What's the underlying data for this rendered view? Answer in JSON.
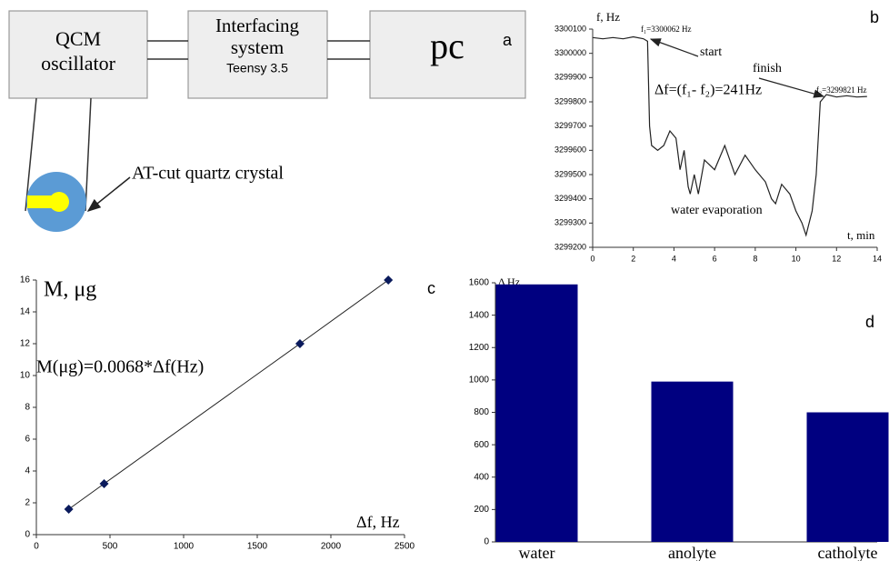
{
  "diagram": {
    "panel": "a",
    "qcm": [
      "QCM",
      "oscillator"
    ],
    "interface": [
      "Interfacing",
      "system",
      "Teensy 3.5"
    ],
    "pc": "pc",
    "crystal_label": "AT-cut quartz crystal"
  },
  "chart_data": [
    {
      "type": "line",
      "panel": "b",
      "x_label": "t, min",
      "y_label": "f, Hz",
      "x": [
        0,
        0.5,
        1,
        1.5,
        2,
        2.5,
        2.7,
        2.8,
        2.9,
        3.2,
        3.5,
        3.8,
        4.1,
        4.3,
        4.5,
        4.7,
        4.8,
        5,
        5.2,
        5.5,
        6,
        6.5,
        7,
        7.5,
        8,
        8.5,
        8.8,
        9,
        9.3,
        9.7,
        10,
        10.3,
        10.5,
        10.8,
        11,
        11.2,
        11.5,
        12,
        12.5,
        13,
        13.5
      ],
      "series": [
        {
          "color": "#222222",
          "values": [
            3300065,
            3300060,
            3300065,
            3300060,
            3300068,
            3300060,
            3300050,
            3299700,
            3299620,
            3299600,
            3299620,
            3299680,
            3299650,
            3299520,
            3299600,
            3299450,
            3299420,
            3299500,
            3299420,
            3299560,
            3299520,
            3299620,
            3299500,
            3299580,
            3299520,
            3299470,
            3299400,
            3299380,
            3299460,
            3299420,
            3299350,
            3299300,
            3299250,
            3299350,
            3299500,
            3299800,
            3299830,
            3299820,
            3299825,
            3299820,
            3299822
          ]
        }
      ],
      "xlim": [
        0,
        14
      ],
      "xticks": [
        0,
        2,
        4,
        6,
        8,
        10,
        12,
        14
      ],
      "ylim": [
        3299200,
        3300100
      ],
      "yticks": [
        3299200,
        3299300,
        3299400,
        3299500,
        3299600,
        3299700,
        3299800,
        3299900,
        3300000,
        3300100
      ],
      "annotations": [
        "f₁=3300062 Hz",
        "start",
        "finish",
        "Δf=(f₁- f₂)=241Hz",
        "f₂=3299821 Hz",
        "water evaporation"
      ]
    },
    {
      "type": "scatter",
      "panel": "c",
      "x_label": "Δf, Hz",
      "y_label": "M, μg",
      "x": [
        220,
        460,
        1790,
        2390
      ],
      "values": [
        1.6,
        3.2,
        12,
        16
      ],
      "color": "#0a1a5c",
      "xlim": [
        0,
        2500
      ],
      "xticks": [
        0,
        500,
        1000,
        1500,
        2000,
        2500
      ],
      "ylim": [
        0,
        16
      ],
      "yticks": [
        0,
        2,
        4,
        6,
        8,
        10,
        12,
        14,
        16
      ],
      "annotations": [
        "M(μg)=0.0068*Δf(Hz)"
      ]
    },
    {
      "type": "bar",
      "panel": "d",
      "y_label": "Δ Hz",
      "categories": [
        "water",
        "anolyte",
        "catholyte"
      ],
      "values": [
        1590,
        990,
        800
      ],
      "color": "#000080",
      "ylim": [
        0,
        1600
      ],
      "yticks": [
        0,
        200,
        400,
        600,
        800,
        1000,
        1200,
        1400,
        1600
      ]
    }
  ]
}
